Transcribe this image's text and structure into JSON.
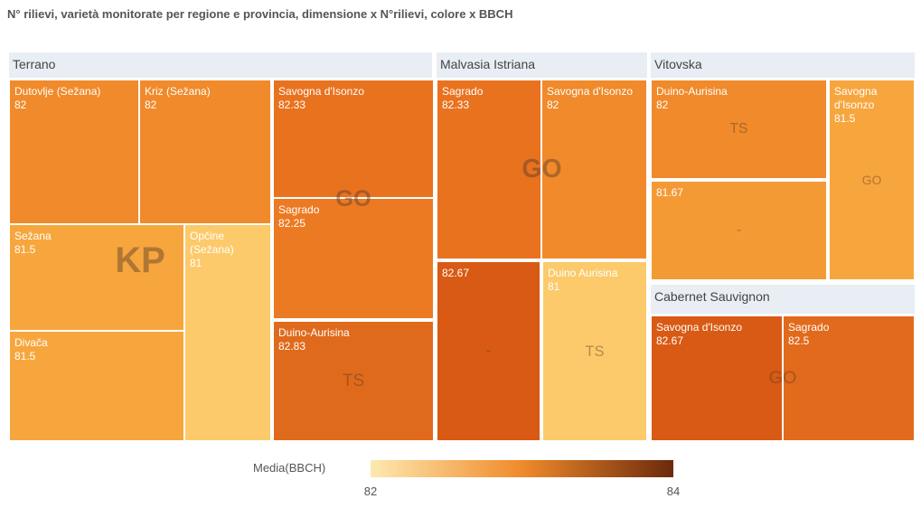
{
  "chart_data": {
    "type": "treemap",
    "title": "N° rilievi, varietà monitorate per regione e provincia, dimensione x N°rilievi, colore x BBCH",
    "groups": [
      {
        "name": "Terrano",
        "provinces": [
          {
            "name": "KP",
            "tiles": [
              {
                "label": "Dutovlje (Sežana)",
                "value": 82,
                "color": "#f08a2a"
              },
              {
                "label": "Kriz (Sežana)",
                "value": 82,
                "color": "#f08a2a"
              },
              {
                "label": "Sežana",
                "value": 81.5,
                "color": "#f7a63e"
              },
              {
                "label": "Divača",
                "value": 81.5,
                "color": "#f7a63e"
              },
              {
                "label": "Opčine (Sežana)",
                "value": 81,
                "color": "#fcca6a"
              }
            ]
          },
          {
            "name": "GO",
            "tiles": [
              {
                "label": "Savogna d'Isonzo",
                "value": 82.33,
                "color": "#e9721f"
              },
              {
                "label": "Sagrado",
                "value": 82.25,
                "color": "#ec7a22"
              }
            ]
          },
          {
            "name": "TS",
            "tiles": [
              {
                "label": "Duino-Aurisina",
                "value": 82.83,
                "color": "#e06a1c"
              }
            ]
          }
        ]
      },
      {
        "name": "Malvasia Istriana",
        "provinces": [
          {
            "name": "GO",
            "tiles": [
              {
                "label": "Sagrado",
                "value": 82.33,
                "color": "#e9721f"
              },
              {
                "label": "Savogna d'Isonzo",
                "value": 82,
                "color": "#f08a2a"
              }
            ]
          },
          {
            "name": "TS",
            "tiles": [
              {
                "label": "Duino Aurisina",
                "value": 81,
                "color": "#fcca6a"
              }
            ]
          },
          {
            "name": "-",
            "tiles": [
              {
                "label": null,
                "value": 82.67,
                "color": "#d85a14"
              }
            ]
          }
        ]
      },
      {
        "name": "Vitovska",
        "provinces": [
          {
            "name": "TS",
            "tiles": [
              {
                "label": "Duino-Aurisina",
                "value": 82,
                "color": "#f08a2a"
              }
            ]
          },
          {
            "name": "-",
            "tiles": [
              {
                "label": null,
                "value": 81.67,
                "color": "#f49a35"
              }
            ]
          },
          {
            "name": "GO",
            "tiles": [
              {
                "label": "Savogna d'Isonzo",
                "value": 81.5,
                "color": "#f7a63e"
              }
            ]
          }
        ]
      },
      {
        "name": "Cabernet Sauvignon",
        "provinces": [
          {
            "name": "GO",
            "tiles": [
              {
                "label": "Savogna d'Isonzo",
                "value": 82.67,
                "color": "#d85a14"
              },
              {
                "label": "Sagrado",
                "value": 82.5,
                "color": "#e26a1c"
              }
            ]
          }
        ]
      }
    ],
    "colorbar": {
      "title": "Media(BBCH)",
      "ticks": [
        82,
        84
      ],
      "colorscale": [
        "#fde9b0",
        "#f08a2a",
        "#6b2a0c"
      ]
    }
  }
}
